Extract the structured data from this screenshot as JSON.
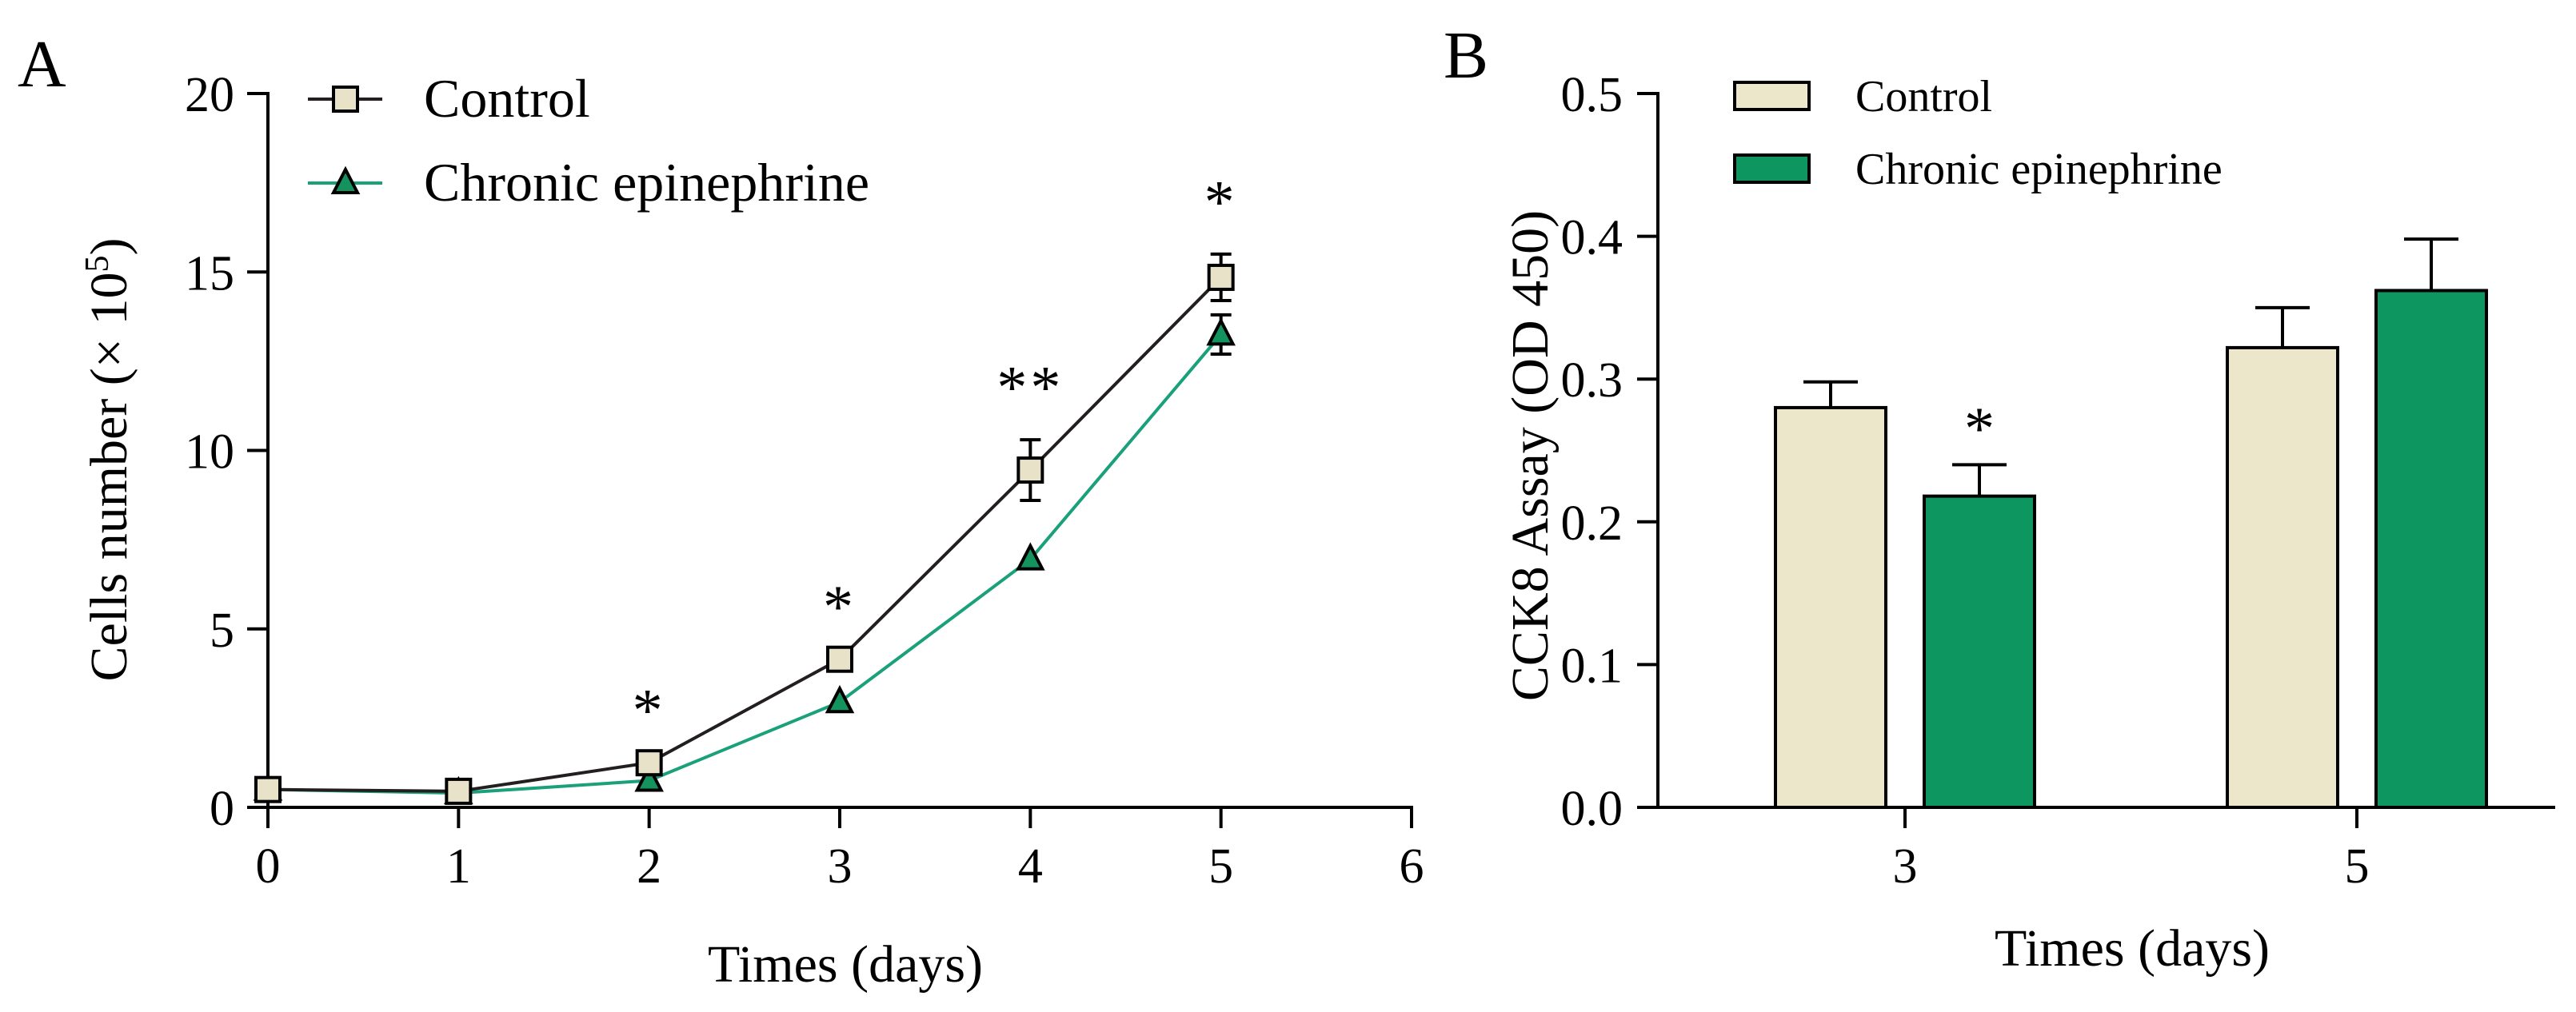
{
  "chart_data": [
    {
      "type": "line",
      "panel_label": "A",
      "title": "",
      "xlabel": "Times (days)",
      "ylabel_main": "Cells number (× 10",
      "ylabel_sup": "5",
      "ylabel_close": ")",
      "xlim": [
        0,
        6
      ],
      "ylim": [
        0,
        20
      ],
      "xticks": [
        "0",
        "1",
        "2",
        "3",
        "4",
        "5",
        "6"
      ],
      "yticks": [
        "0",
        "5",
        "10",
        "15",
        "20"
      ],
      "legend_position": "top-left",
      "x": [
        0,
        1,
        2,
        3,
        4,
        5
      ],
      "series": [
        {
          "name": "Control",
          "marker": "square",
          "line_color": "#231f20",
          "marker_fill": "#e8e2c8",
          "values": [
            0.5,
            0.45,
            1.25,
            4.15,
            9.45,
            14.85
          ],
          "errors": [
            0.0,
            0.0,
            0.0,
            0.0,
            0.85,
            0.65
          ]
        },
        {
          "name": "Chronic epinephrine",
          "marker": "triangle",
          "line_color": "#1aa07a",
          "marker_fill": "#15935f",
          "values": [
            0.5,
            0.4,
            0.75,
            2.95,
            6.95,
            13.25
          ],
          "errors": [
            0.0,
            0.0,
            0.0,
            0.0,
            0.0,
            0.55
          ]
        }
      ],
      "annotations": [
        {
          "x": 2,
          "text": "*"
        },
        {
          "x": 3,
          "text": "*"
        },
        {
          "x": 4,
          "text": "**"
        },
        {
          "x": 5,
          "text": "*"
        }
      ]
    },
    {
      "type": "bar",
      "panel_label": "B",
      "title": "",
      "xlabel": "Times (days)",
      "ylabel": "CCK8 Assay (OD 450)",
      "categories": [
        "3",
        "5"
      ],
      "ylim": [
        0,
        0.5
      ],
      "yticks": [
        "0.0",
        "0.1",
        "0.2",
        "0.3",
        "0.4",
        "0.5"
      ],
      "legend_position": "top-left",
      "series": [
        {
          "name": "Control",
          "color": "#ece6cb",
          "values": [
            0.28,
            0.322
          ],
          "errors": [
            0.018,
            0.028
          ]
        },
        {
          "name": "Chronic epinephrine",
          "color": "#0e9660",
          "values": [
            0.218,
            0.362
          ],
          "errors": [
            0.022,
            0.036
          ]
        }
      ],
      "annotations": [
        {
          "category": "3",
          "series": "Chronic epinephrine",
          "text": "*"
        }
      ]
    }
  ]
}
